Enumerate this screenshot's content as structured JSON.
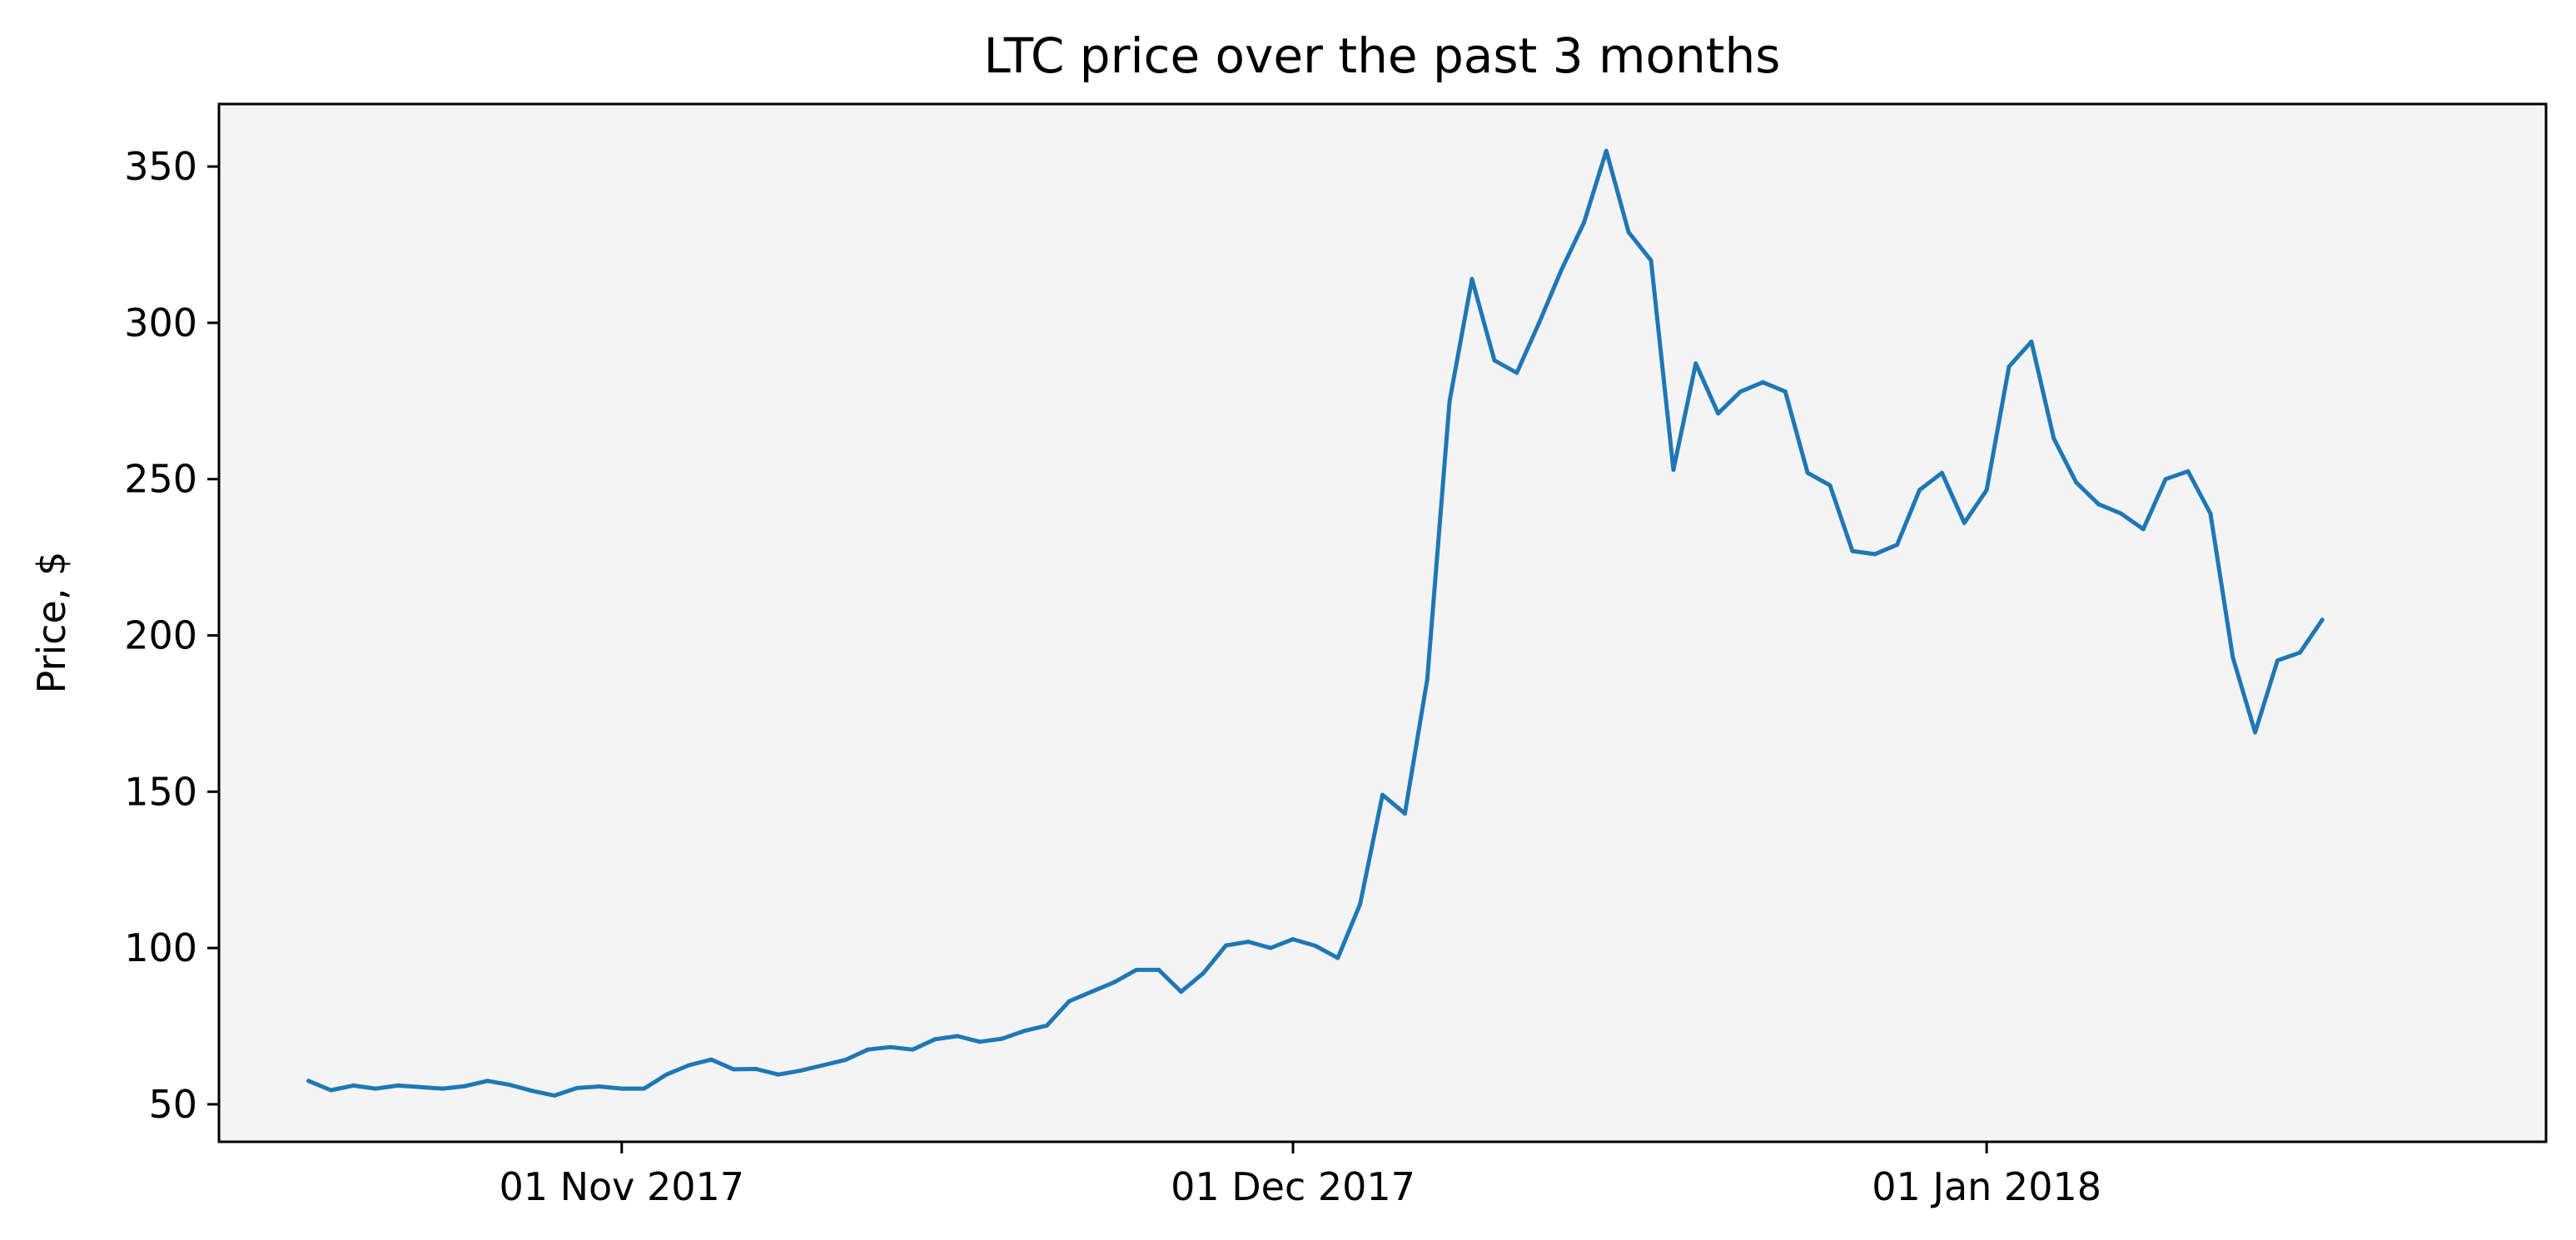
{
  "chart_data": {
    "type": "line",
    "title": "LTC price over the past 3 months",
    "xlabel": "",
    "ylabel": "Price, $",
    "x_start_date": "2017-10-18",
    "x_end_date": "2018-01-23",
    "xlim": [
      "2017-10-14",
      "2018-01-26"
    ],
    "ylim": [
      38,
      370
    ],
    "yticks": [
      50,
      100,
      150,
      200,
      250,
      300,
      350
    ],
    "xticks": [
      {
        "date": "2017-11-01",
        "label": "01 Nov 2017"
      },
      {
        "date": "2017-12-01",
        "label": "01 Dec 2017"
      },
      {
        "date": "2018-01-01",
        "label": "01 Jan 2018"
      }
    ],
    "grid": false,
    "legend": "none",
    "colors": {
      "line": "#1f77b4",
      "plot_background": "#f4f4f4",
      "axes": "#000000"
    },
    "series": [
      {
        "values": [
          57.5,
          54.5,
          56.0,
          55.0,
          56.0,
          55.5,
          55.0,
          55.8,
          57.5,
          56.2,
          54.3,
          52.8,
          55.2,
          55.7,
          55.0,
          55.0,
          59.5,
          62.5,
          64.3,
          61.2,
          61.3,
          59.5,
          60.8,
          62.5,
          64.2,
          67.5,
          68.3,
          67.5,
          70.8,
          71.8,
          70.0,
          71.0,
          73.5,
          75.2,
          83.0,
          86.0,
          89.0,
          93.0,
          93.0,
          86.0,
          92.0,
          100.8,
          102.0,
          100.0,
          102.8,
          100.7,
          96.8,
          114.0,
          149.0,
          143.0,
          186.0,
          275.0,
          314.0,
          288.0,
          284.0,
          300.0,
          317.0,
          332.0,
          355.0,
          329.0,
          320.0,
          253.0,
          287.0,
          271.0,
          278.0,
          281.0,
          278.0,
          252.0,
          248.0,
          227.0,
          226.0,
          229.0,
          246.5,
          252.0,
          236.0,
          246.5,
          286.0,
          294.0,
          263.0,
          249.0,
          242.0,
          239.0,
          234.0,
          250.0,
          252.5,
          239.0,
          193.0,
          169.0,
          192.0,
          194.5,
          205.0
        ]
      }
    ]
  }
}
